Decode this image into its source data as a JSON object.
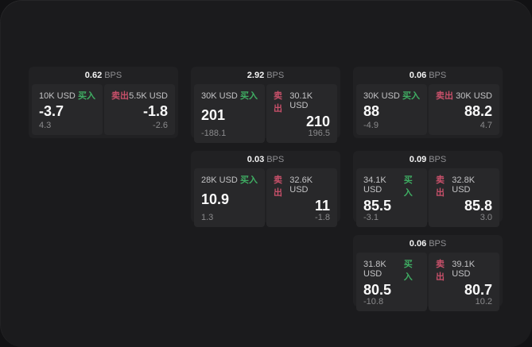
{
  "app": {
    "unit_label": "BPS",
    "buy_label": "买入",
    "sell_label": "卖出",
    "colors": {
      "buy_green": "#3fae63",
      "sell_red": "#c8506a",
      "surface_bg": "#1b1b1d",
      "card_bg": "#212123",
      "panel_bg": "#28282a"
    }
  },
  "cards": [
    {
      "bps": "0.62",
      "buy": {
        "notional": "10K USD",
        "price": "-3.7",
        "delta": "4.3"
      },
      "sell": {
        "notional": "5.5K USD",
        "price": "-1.8",
        "delta": "-2.6"
      }
    },
    {
      "bps": "2.92",
      "buy": {
        "notional": "30K USD",
        "price": "201",
        "delta": "-188.1"
      },
      "sell": {
        "notional": "30.1K USD",
        "price": "210",
        "delta": "196.5"
      }
    },
    {
      "bps": "0.06",
      "buy": {
        "notional": "30K USD",
        "price": "88",
        "delta": "-4.9"
      },
      "sell": {
        "notional": "30K USD",
        "price": "88.2",
        "delta": "4.7"
      }
    },
    {
      "bps": "0.03",
      "buy": {
        "notional": "28K USD",
        "price": "10.9",
        "delta": "1.3"
      },
      "sell": {
        "notional": "32.6K USD",
        "price": "11",
        "delta": "-1.8"
      }
    },
    {
      "bps": "0.09",
      "buy": {
        "notional": "34.1K USD",
        "price": "85.5",
        "delta": "-3.1"
      },
      "sell": {
        "notional": "32.8K USD",
        "price": "85.8",
        "delta": "3.0"
      }
    },
    {
      "bps": "0.06",
      "buy": {
        "notional": "31.8K USD",
        "price": "80.5",
        "delta": "-10.8"
      },
      "sell": {
        "notional": "39.1K USD",
        "price": "80.7",
        "delta": "10.2"
      }
    }
  ]
}
